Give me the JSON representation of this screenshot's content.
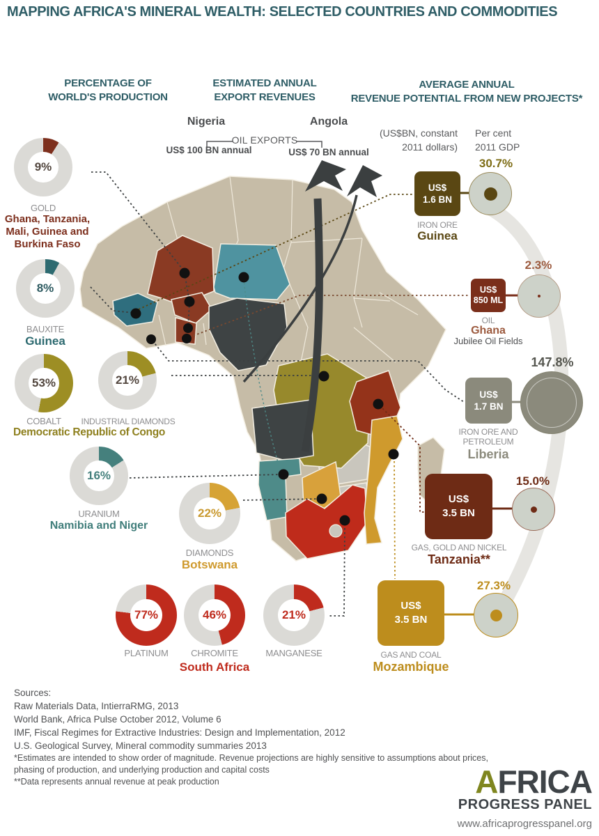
{
  "title": "MAPPING AFRICA'S MINERAL WEALTH: SELECTED COUNTRIES AND COMMODITIES",
  "headers": {
    "left": [
      "PERCENTAGE OF",
      "WORLD'S PRODUCTION"
    ],
    "middle": [
      "ESTIMATED ANNUAL",
      "EXPORT REVENUES"
    ],
    "right": [
      "AVERAGE ANNUAL",
      "REVENUE POTENTIAL FROM NEW PROJECTS*"
    ]
  },
  "exports": {
    "title": "OIL EXPORTS",
    "nigeria": {
      "country": "Nigeria",
      "value": "US$ 100 BN annual"
    },
    "angola": {
      "country": "Angola",
      "value": "US$ 70 BN annual"
    }
  },
  "projects_notes": {
    "units_line1": "(US$BN, constant",
    "units_line2": "2011 dollars)",
    "gdp_line1": "Per cent",
    "gdp_line2": "2011 GDP"
  },
  "donuts": [
    {
      "commodity": "GOLD",
      "pct": 9,
      "pct_label": "9%",
      "color": "#7d2f1d",
      "text_color": "#53473f",
      "countries_lines": [
        "Ghana, Tanzania,",
        "Mali, Guinea and",
        "Burkina Faso"
      ],
      "countries_color": "#7d2f1d"
    },
    {
      "commodity": "BAUXITE",
      "pct": 8,
      "pct_label": "8%",
      "color": "#2d6a70",
      "text_color": "#2d5a60",
      "country": "Guinea",
      "country_color": "#2d6a70"
    },
    {
      "commodity": "COBALT",
      "pct": 53,
      "pct_label": "53%",
      "color": "#9d8e24",
      "text_color": "#53473f"
    },
    {
      "commodity": "INDUSTRIAL DIAMONDS",
      "pct": 21,
      "pct_label": "21%",
      "color": "#9d8e24",
      "text_color": "#53473f"
    },
    {
      "commodity": "URANIUM",
      "pct": 16,
      "pct_label": "16%",
      "color": "#45807d",
      "text_color": "#45807d",
      "country": "Namibia and Niger",
      "country_color": "#3f7d7a"
    },
    {
      "commodity": "DIAMONDS",
      "pct": 22,
      "pct_label": "22%",
      "color": "#d6a335",
      "text_color": "#c9992f",
      "country": "Botswana",
      "country_color": "#cf9a2e"
    },
    {
      "commodity": "PLATINUM",
      "pct": 77,
      "pct_label": "77%",
      "color": "#bf2b1d",
      "text_color": "#bf2b1d"
    },
    {
      "commodity": "CHROMITE",
      "pct": 46,
      "pct_label": "46%",
      "color": "#bf2b1d",
      "text_color": "#bf2b1d"
    },
    {
      "commodity": "MANGANESE",
      "pct": 21,
      "pct_label": "21%",
      "color": "#bf2b1d",
      "text_color": "#bf2b1d"
    }
  ],
  "group_labels": {
    "drc": "Democratic Republic of Congo",
    "drc_color": "#8f8120",
    "south_africa": "South Africa",
    "sa_color": "#bf2b1d"
  },
  "projects": [
    {
      "value_lines": [
        "US$",
        "1.6 BN"
      ],
      "commodity_lines": [
        "IRON ORE"
      ],
      "country": "Guinea",
      "pct": 30.7,
      "pct_label": "30.7%",
      "box_color": "#5a4713",
      "country_color": "#5a4713",
      "pct_color": "#7d6c14",
      "dot_color": "#5a4713",
      "circle_border": "#9a8a5a"
    },
    {
      "value_lines": [
        "US$",
        "850 ML"
      ],
      "commodity_lines": [
        "OIL"
      ],
      "country": "Ghana",
      "note": "Jubilee Oil Fields",
      "pct": 2.3,
      "pct_label": "2.3%",
      "box_color": "#7a2e1a",
      "country_color": "#9c5a3e",
      "pct_color": "#9c5a3e",
      "dot_color": "#7a2e1a",
      "circle_border": "#b59c86"
    },
    {
      "value_lines": [
        "US$",
        "1.7 BN"
      ],
      "commodity_lines": [
        "IRON ORE AND",
        "PETROLEUM"
      ],
      "country": "Liberia",
      "pct": 147.8,
      "pct_label": "147.8%",
      "box_color": "#8b8a7c",
      "country_color": "#8b8a7c",
      "pct_color": "#55564f",
      "dot_color": "#8b8a7c",
      "circle_border": "#83826f"
    },
    {
      "value_lines": [
        "US$",
        "3.5 BN"
      ],
      "commodity_lines": [
        "GAS, GOLD AND NICKEL"
      ],
      "country": "Tanzania**",
      "pct": 15.0,
      "pct_label": "15.0%",
      "box_color": "#6e2b15",
      "country_color": "#6e2b15",
      "pct_color": "#6e2b15",
      "dot_color": "#6e2b15",
      "circle_border": "#9b6a57"
    },
    {
      "value_lines": [
        "US$",
        "3.5 BN"
      ],
      "commodity_lines": [
        "GAS AND COAL"
      ],
      "country": "Mozambique",
      "pct": 27.3,
      "pct_label": "27.3%",
      "box_color": "#bd8d1d",
      "country_color": "#bd8d1d",
      "pct_color": "#bd8d1d",
      "dot_color": "#bd8d1d",
      "circle_border": "#bd8d1d"
    }
  ],
  "sources": {
    "label": "Sources:",
    "lines": [
      "Raw Materials Data, IntierraRMG, 2013",
      "World Bank, Africa Pulse October 2012, Volume 6",
      "IMF, Fiscal Regimes for Extractive Industries: Design and Implementation, 2012",
      "U.S. Geological Survey, Mineral commodity summaries 2013"
    ]
  },
  "footnotes": [
    "*Estimates are intended to show order of magnitude. Revenue projections are highly sensitive to assumptions about prices,",
    "phasing of production, and underlying production and capital costs",
    "**Data represents annual revenue at peak production"
  ],
  "logo": {
    "line1": "AFRICA",
    "line2": "PROGRESS PANEL",
    "url": "www.africaprogresspanel.org"
  },
  "map": {
    "colors": {
      "base": "#c6bca7",
      "neutral": "#c9c6bd",
      "border": "#f3eee2",
      "mali": "#8a3a23",
      "burkina_faso": "#8a3a23",
      "ghana": "#8a3a23",
      "guinea": "#2f6e7e",
      "niger": "#4f93a0",
      "nigeria": "#3e4344",
      "angola": "#3e4344",
      "drc": "#97892c",
      "tanzania": "#94331a",
      "namibia": "#4e8b89",
      "botswana": "#d8a13b",
      "mozambique": "#cf9a2d",
      "south_africa": "#bf2b1b",
      "madagascar": "#c6bca7",
      "dot": "#111111",
      "arrow": "#3b3f40",
      "swoosh": "#e6e5e1"
    },
    "highlighted_countries": [
      "Mali",
      "Burkina Faso",
      "Ghana",
      "Guinea",
      "Niger",
      "Nigeria",
      "Democratic Republic of Congo",
      "Tanzania",
      "Angola",
      "Namibia",
      "Botswana",
      "Mozambique",
      "South Africa"
    ]
  },
  "chart_data": [
    {
      "type": "pie",
      "title": "Percentage of world's production",
      "items": [
        {
          "commodity": "Gold",
          "countries": "Ghana, Tanzania, Mali, Guinea and Burkina Faso",
          "pct": 9
        },
        {
          "commodity": "Bauxite",
          "countries": "Guinea",
          "pct": 8
        },
        {
          "commodity": "Cobalt",
          "countries": "Democratic Republic of Congo",
          "pct": 53
        },
        {
          "commodity": "Industrial diamonds",
          "countries": "Democratic Republic of Congo",
          "pct": 21
        },
        {
          "commodity": "Uranium",
          "countries": "Namibia and Niger",
          "pct": 16
        },
        {
          "commodity": "Diamonds",
          "countries": "Botswana",
          "pct": 22
        },
        {
          "commodity": "Platinum",
          "countries": "South Africa",
          "pct": 77
        },
        {
          "commodity": "Chromite",
          "countries": "South Africa",
          "pct": 46
        },
        {
          "commodity": "Manganese",
          "countries": "South Africa",
          "pct": 21
        }
      ]
    },
    {
      "type": "table",
      "title": "Estimated annual export revenues — oil exports",
      "rows": [
        {
          "country": "Nigeria",
          "value": "US$ 100 BN annual"
        },
        {
          "country": "Angola",
          "value": "US$ 70 BN annual"
        }
      ]
    },
    {
      "type": "table",
      "title": "Average annual revenue potential from new projects (US$BN, constant 2011 dollars)",
      "rows": [
        {
          "country": "Guinea",
          "commodities": "Iron ore",
          "revenue": "US$ 1.6 BN",
          "pct_2011_gdp": 30.7
        },
        {
          "country": "Ghana (Jubilee Oil Fields)",
          "commodities": "Oil",
          "revenue": "US$ 850 ML",
          "pct_2011_gdp": 2.3
        },
        {
          "country": "Liberia",
          "commodities": "Iron ore and petroleum",
          "revenue": "US$ 1.7 BN",
          "pct_2011_gdp": 147.8
        },
        {
          "country": "Tanzania",
          "commodities": "Gas, gold and nickel",
          "revenue": "US$ 3.5 BN",
          "pct_2011_gdp": 15.0
        },
        {
          "country": "Mozambique",
          "commodities": "Gas and coal",
          "revenue": "US$ 3.5 BN",
          "pct_2011_gdp": 27.3
        }
      ]
    }
  ]
}
